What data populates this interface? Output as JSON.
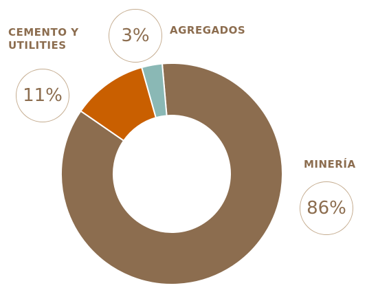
{
  "chart_data": {
    "type": "donut",
    "categories": [
      "MINERÍA",
      "CEMENTO Y UTILITIES",
      "AGREGADOS"
    ],
    "values": [
      86,
      11,
      3
    ],
    "value_labels": [
      "86%",
      "11%",
      "3%"
    ],
    "colors": [
      "#8c6d4f",
      "#c95f00",
      "#8ab8b5"
    ]
  }
}
